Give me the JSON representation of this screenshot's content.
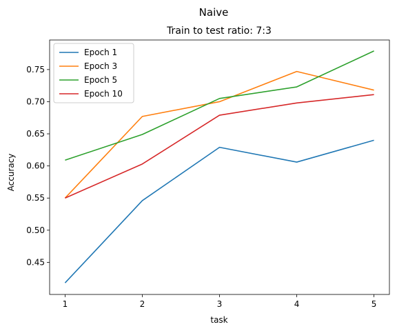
{
  "chart_data": {
    "type": "line",
    "suptitle": "Naive",
    "title": "Train to test ratio: 7:3",
    "xlabel": "task",
    "ylabel": "Accuracy",
    "x": [
      1,
      2,
      3,
      4,
      5
    ],
    "xticks": [
      1,
      2,
      3,
      4,
      5
    ],
    "yticks": [
      0.45,
      0.5,
      0.55,
      0.6,
      0.65,
      0.7,
      0.75
    ],
    "ytick_labels": [
      "0.45",
      "0.50",
      "0.55",
      "0.60",
      "0.65",
      "0.70",
      "0.75"
    ],
    "xlim": [
      0.8,
      5.2
    ],
    "ylim": [
      0.4,
      0.796
    ],
    "grid": false,
    "legend_position": "upper-left",
    "series": [
      {
        "name": "Epoch 1",
        "color": "#1f77b4",
        "values": [
          0.418,
          0.546,
          0.629,
          0.606,
          0.64
        ]
      },
      {
        "name": "Epoch 3",
        "color": "#ff7f0e",
        "values": [
          0.55,
          0.677,
          0.7,
          0.747,
          0.718
        ]
      },
      {
        "name": "Epoch 5",
        "color": "#2ca02c",
        "values": [
          0.609,
          0.649,
          0.705,
          0.723,
          0.779
        ]
      },
      {
        "name": "Epoch 10",
        "color": "#d62728",
        "values": [
          0.55,
          0.603,
          0.679,
          0.698,
          0.711
        ]
      }
    ]
  }
}
